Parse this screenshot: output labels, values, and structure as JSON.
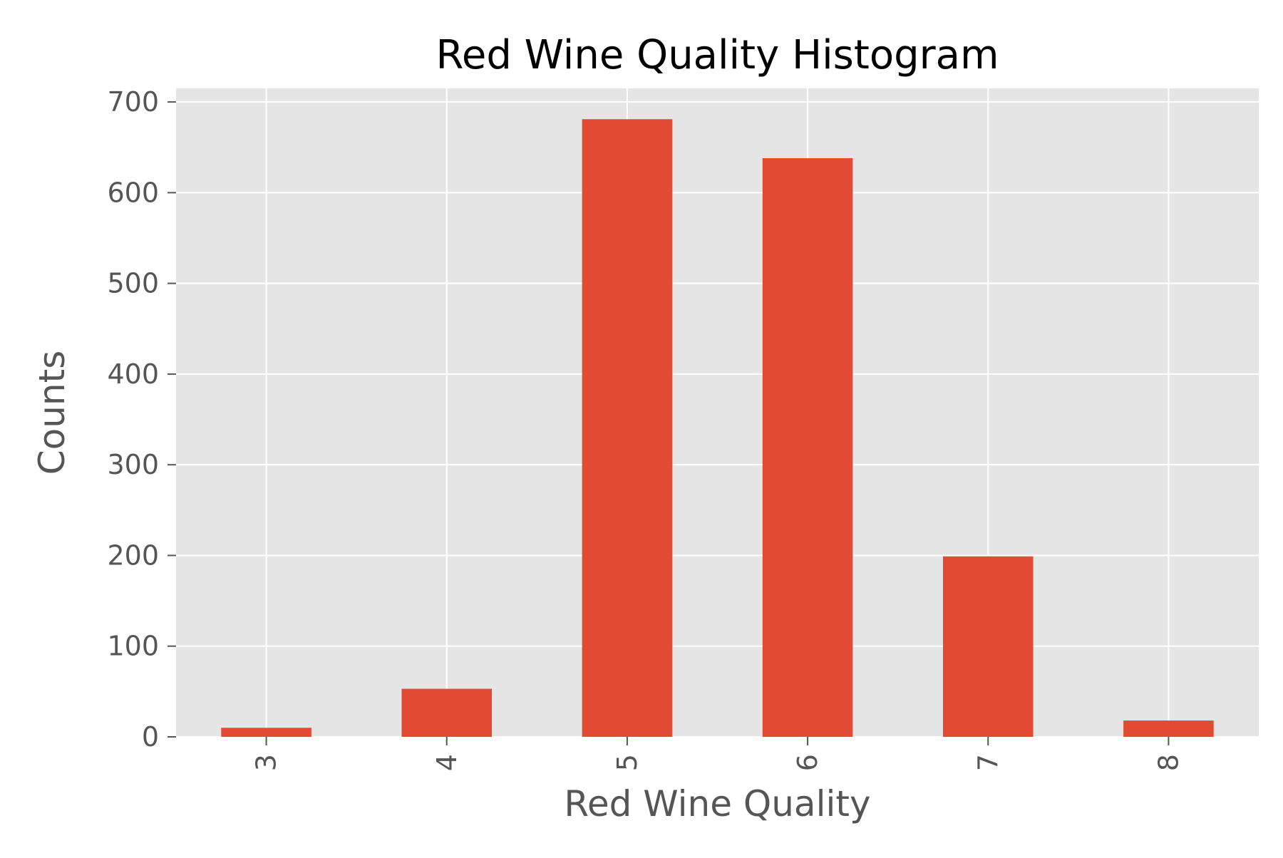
{
  "chart_data": {
    "type": "bar",
    "title": "Red Wine Quality Histogram",
    "xlabel": "Red Wine Quality",
    "ylabel": "Counts",
    "categories": [
      "3",
      "4",
      "5",
      "6",
      "7",
      "8"
    ],
    "values": [
      10,
      53,
      681,
      638,
      199,
      18
    ],
    "ylim": [
      0,
      715
    ],
    "yticks": [
      0,
      100,
      200,
      300,
      400,
      500,
      600,
      700
    ],
    "xtick_rotation": "vertical",
    "grid": true,
    "legend": "none",
    "colors": {
      "bar": "#E24A33",
      "plot_background": "#E5E5E5",
      "grid": "#FFFFFF",
      "tick_label": "#555555",
      "axis_label": "#555555",
      "title": "#000000",
      "figure_background": "#FFFFFF"
    }
  }
}
